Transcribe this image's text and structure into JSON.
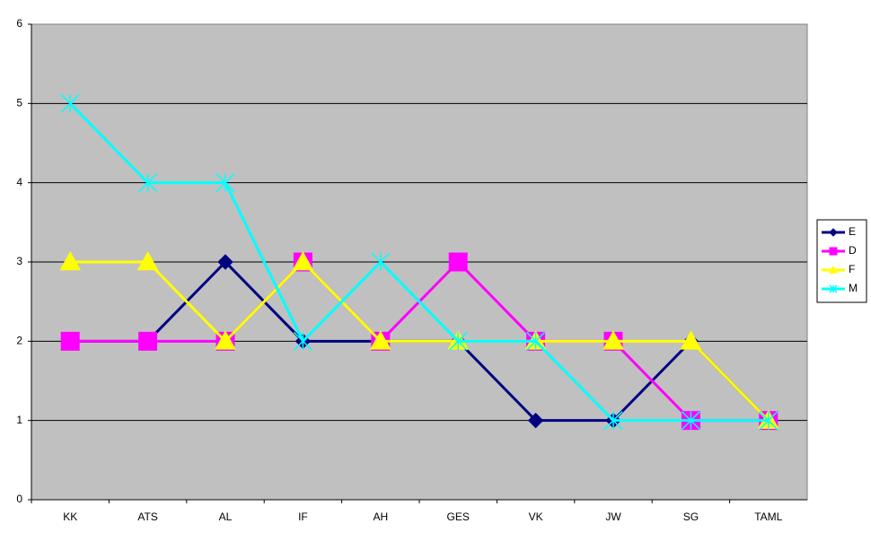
{
  "chart_data": {
    "type": "line",
    "categories": [
      "KK",
      "ATS",
      "AL",
      "IF",
      "AH",
      "GES",
      "VK",
      "JW",
      "SG",
      "TAML"
    ],
    "series": [
      {
        "name": "E",
        "color": "#000080",
        "marker": "diamond",
        "values": [
          2,
          2,
          3,
          2,
          2,
          2,
          1,
          1,
          2,
          1
        ]
      },
      {
        "name": "D",
        "color": "#ff00ff",
        "marker": "square",
        "values": [
          2,
          2,
          2,
          3,
          2,
          3,
          2,
          2,
          1,
          1
        ]
      },
      {
        "name": "F",
        "color": "#ffff00",
        "marker": "triangle",
        "values": [
          3,
          3,
          2,
          3,
          2,
          2,
          2,
          2,
          2,
          1
        ]
      },
      {
        "name": "M",
        "color": "#00ffff",
        "marker": "x",
        "values": [
          5,
          4,
          4,
          2,
          3,
          2,
          2,
          1,
          1,
          1
        ]
      }
    ],
    "ylim": [
      0,
      6
    ],
    "yticks": [
      0,
      1,
      2,
      3,
      4,
      5,
      6
    ],
    "grid": true,
    "legend": "right"
  }
}
